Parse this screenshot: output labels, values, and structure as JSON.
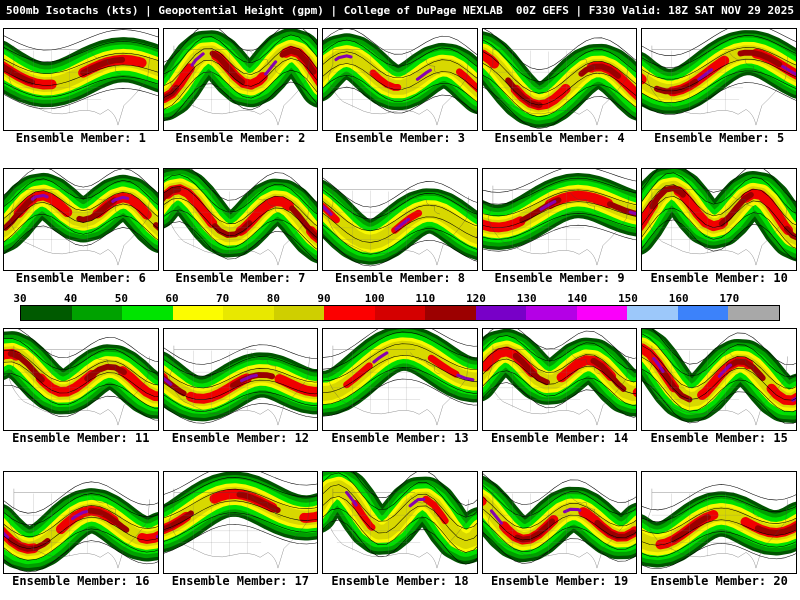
{
  "header": {
    "title": "500mb Isotachs (kts) | Geopotential Height (gpm) | College of DuPage NEXLAB",
    "valid": "00Z GEFS | F330 Valid: 18Z SAT NOV 29 2025"
  },
  "panels": [
    {
      "label": "Ensemble Member: 1"
    },
    {
      "label": "Ensemble Member: 2"
    },
    {
      "label": "Ensemble Member: 3"
    },
    {
      "label": "Ensemble Member: 4"
    },
    {
      "label": "Ensemble Member: 5"
    },
    {
      "label": "Ensemble Member: 6"
    },
    {
      "label": "Ensemble Member: 7"
    },
    {
      "label": "Ensemble Member: 8"
    },
    {
      "label": "Ensemble Member: 9"
    },
    {
      "label": "Ensemble Member: 10"
    },
    {
      "label": "Ensemble Member: 11"
    },
    {
      "label": "Ensemble Member: 12"
    },
    {
      "label": "Ensemble Member: 13"
    },
    {
      "label": "Ensemble Member: 14"
    },
    {
      "label": "Ensemble Member: 15"
    },
    {
      "label": "Ensemble Member: 16"
    },
    {
      "label": "Ensemble Member: 17"
    },
    {
      "label": "Ensemble Member: 18"
    },
    {
      "label": "Ensemble Member: 19"
    },
    {
      "label": "Ensemble Member: 20"
    }
  ],
  "colorbar": {
    "ticks": [
      "30",
      "40",
      "50",
      "60",
      "70",
      "80",
      "90",
      "100",
      "110",
      "120",
      "130",
      "140",
      "150",
      "160",
      "170"
    ],
    "colors": [
      "#005a00",
      "#00a200",
      "#00e400",
      "#fcfc00",
      "#e8e800",
      "#cfcf00",
      "#fc0000",
      "#d40000",
      "#9c0000",
      "#7800c8",
      "#b400e6",
      "#fa00fa",
      "#9cc8fa",
      "#3c82fa",
      "#a8a8a8"
    ]
  },
  "palette": {
    "header_bg": "#000000",
    "header_fg": "#ffffff",
    "map_border": "#000000",
    "jet_green_dark": "#005400",
    "jet_green": "#00a000",
    "jet_green_bright": "#00e000",
    "jet_yellow": "#f8f800",
    "jet_red": "#f00000",
    "jet_dark_red": "#9a0000",
    "jet_purple": "#8800b0"
  }
}
